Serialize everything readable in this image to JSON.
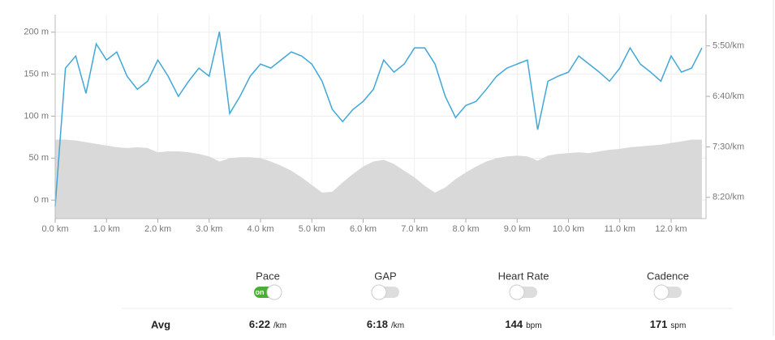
{
  "chart_data": {
    "type": "line",
    "x": [
      0.0,
      0.2,
      0.4,
      0.6,
      0.8,
      1.0,
      1.2,
      1.4,
      1.6,
      1.8,
      2.0,
      2.2,
      2.4,
      2.6,
      2.8,
      3.0,
      3.2,
      3.4,
      3.6,
      3.8,
      4.0,
      4.2,
      4.4,
      4.6,
      4.8,
      5.0,
      5.2,
      5.4,
      5.6,
      5.8,
      6.0,
      6.2,
      6.4,
      6.6,
      6.8,
      7.0,
      7.2,
      7.4,
      7.6,
      7.8,
      8.0,
      8.2,
      8.4,
      8.6,
      8.8,
      9.0,
      9.2,
      9.4,
      9.6,
      9.8,
      10.0,
      10.2,
      10.4,
      10.6,
      10.8,
      11.0,
      11.2,
      11.4,
      11.6,
      11.8,
      12.0,
      12.2,
      12.4,
      12.6
    ],
    "series": [
      {
        "color": "#d9d9d9",
        "fill": true,
        "values": [
          72,
          72,
          71,
          69,
          67,
          65,
          63,
          62,
          63,
          62,
          57,
          58,
          58,
          57,
          55,
          52,
          46,
          50,
          51,
          51,
          50,
          46,
          41,
          35,
          27,
          18,
          9,
          10,
          21,
          31,
          40,
          46,
          48,
          43,
          35,
          27,
          17,
          9,
          15,
          25,
          33,
          40,
          46,
          50,
          52,
          53,
          52,
          47,
          53,
          55,
          56,
          57,
          56,
          58,
          60,
          61,
          63,
          64,
          65,
          66,
          68,
          70,
          72,
          72
        ]
      },
      {
        "color": "#41a7d8",
        "fill": false,
        "axis": "y2",
        "values": [
          509,
          372,
          360,
          397,
          348,
          364,
          356,
          380,
          393,
          385,
          364,
          380,
          400,
          385,
          372,
          380,
          336,
          417,
          400,
          380,
          368,
          372,
          364,
          356,
          360,
          368,
          385,
          413,
          425,
          413,
          405,
          393,
          364,
          376,
          368,
          352,
          352,
          368,
          400,
          421,
          409,
          405,
          393,
          380,
          372,
          368,
          364,
          433,
          385,
          380,
          376,
          360,
          368,
          376,
          385,
          372,
          352,
          368,
          376,
          385,
          360,
          376,
          372,
          352
        ]
      }
    ],
    "xlim": [
      0,
      12.68
    ],
    "xticks": [
      {
        "value": 0,
        "label": "0.0 km"
      },
      {
        "value": 1,
        "label": "1.0 km"
      },
      {
        "value": 2,
        "label": "2.0 km"
      },
      {
        "value": 3,
        "label": "3.0 km"
      },
      {
        "value": 4,
        "label": "4.0 km"
      },
      {
        "value": 5,
        "label": "5.0 km"
      },
      {
        "value": 6,
        "label": "6.0 km"
      },
      {
        "value": 7,
        "label": "7.0 km"
      },
      {
        "value": 8,
        "label": "8.0 km"
      },
      {
        "value": 9,
        "label": "9.0 km"
      },
      {
        "value": 10,
        "label": "10.0 km"
      },
      {
        "value": 11,
        "label": "11.0 km"
      },
      {
        "value": 12,
        "label": "12.0 km"
      }
    ],
    "ylim": [
      -22,
      221
    ],
    "yticks": [
      {
        "value": 0,
        "label": "0 m"
      },
      {
        "value": 50,
        "label": "50 m"
      },
      {
        "value": 100,
        "label": "100 m"
      },
      {
        "value": 150,
        "label": "150 m"
      },
      {
        "value": 200,
        "label": "200 m"
      }
    ],
    "y2lim": [
      521,
      319
    ],
    "y2ticks": [
      {
        "value": 350,
        "label": "5:50/km"
      },
      {
        "value": 400,
        "label": "6:40/km"
      },
      {
        "value": 450,
        "label": "7:30/km"
      },
      {
        "value": 500,
        "label": "8:20/km"
      }
    ],
    "grid": true
  },
  "controls": {
    "toggles": [
      {
        "label": "Pace",
        "on": true,
        "state_label": "on"
      },
      {
        "label": "GAP",
        "on": false
      },
      {
        "label": "Heart Rate",
        "on": false
      },
      {
        "label": "Cadence",
        "on": false
      }
    ],
    "avg": {
      "label": "Avg",
      "values": [
        {
          "value": "6:22",
          "unit": "/km"
        },
        {
          "value": "6:18",
          "unit": "/km"
        },
        {
          "value": "144",
          "unit": "bpm"
        },
        {
          "value": "171",
          "unit": "spm"
        }
      ]
    }
  }
}
